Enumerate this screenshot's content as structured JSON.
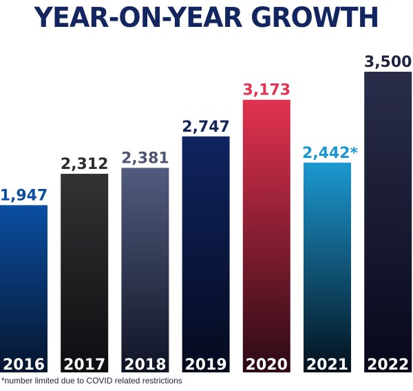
{
  "chart_data": {
    "type": "bar",
    "title": "YEAR-ON-YEAR GROWTH",
    "categories": [
      "2016",
      "2017",
      "2018",
      "2019",
      "2020",
      "2021",
      "2022"
    ],
    "values": [
      1947,
      2312,
      2381,
      2747,
      3173,
      2442,
      3500
    ],
    "value_labels": [
      "1,947",
      "2,312",
      "2,381",
      "2,747",
      "3,173",
      "2,442*",
      "3,500"
    ],
    "ylim": [
      0,
      3500
    ],
    "grid": false,
    "legend": "none",
    "bar_colors": [
      {
        "top": "#0b4ea2",
        "bottom": "#06152e",
        "label": "#0b4ea2"
      },
      {
        "top": "#333333",
        "bottom": "#0d0d12",
        "label": "#2b2b2b"
      },
      {
        "top": "#535b7e",
        "bottom": "#0f1425",
        "label": "#4e5575"
      },
      {
        "top": "#0f2460",
        "bottom": "#050a1d",
        "label": "#13245a"
      },
      {
        "top": "#e2324f",
        "bottom": "#2a0a14",
        "label": "#e2324f"
      },
      {
        "top": "#1c98d0",
        "bottom": "#04101c",
        "label": "#1c98d0"
      },
      {
        "top": "#2a2d4a",
        "bottom": "#07081a",
        "label": "#1f2240"
      }
    ]
  },
  "footnote": "*number limited due to COVID related restrictions"
}
